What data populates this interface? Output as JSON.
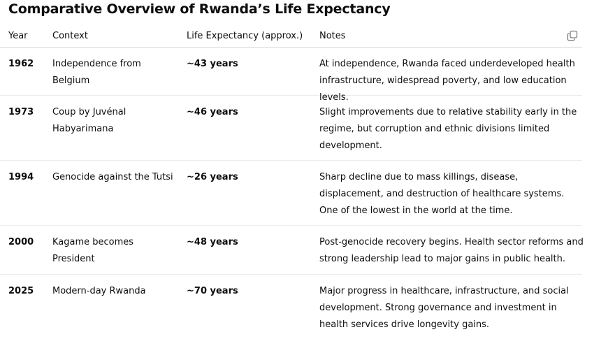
{
  "title": "Comparative Overview of Rwanda’s Life Expectancy",
  "icons": {
    "copy": "copy-icon"
  },
  "table": {
    "headers": {
      "year": "Year",
      "context": "Context",
      "life": "Life Expectancy (approx.)",
      "notes": "Notes"
    },
    "rows": [
      {
        "year": "1962",
        "context": "Independence from Belgium",
        "life": "~43 years",
        "notes": "At independence, Rwanda faced underdeveloped health infrastructure, widespread poverty, and low education levels."
      },
      {
        "year": "1973",
        "context": "Coup by Juvénal Habyarimana",
        "life": "~46 years",
        "notes": "Slight improvements due to relative stability early in the regime, but corruption and ethnic divisions limited development."
      },
      {
        "year": "1994",
        "context": "Genocide against the Tutsi",
        "life": "~26 years",
        "notes": "Sharp decline due to mass killings, disease, displacement, and destruction of healthcare systems. One of the lowest in the world at the time."
      },
      {
        "year": "2000",
        "context": "Kagame becomes President",
        "life": "~48 years",
        "notes": "Post-genocide recovery begins. Health sector reforms and strong leadership lead to major gains in public health."
      },
      {
        "year": "2025",
        "context": "Modern-day Rwanda",
        "life": "~70 years",
        "notes": "Major progress in healthcare, infrastructure, and social development. Strong governance and investment in health services drive longevity gains."
      }
    ]
  }
}
